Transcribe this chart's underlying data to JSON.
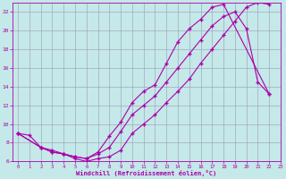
{
  "title": "",
  "xlabel": "Windchill (Refroidissement éolien,°C)",
  "ylabel": "",
  "xlim": [
    -0.5,
    23
  ],
  "ylim": [
    6,
    23
  ],
  "xticks": [
    0,
    1,
    2,
    3,
    4,
    5,
    6,
    7,
    8,
    9,
    10,
    11,
    12,
    13,
    14,
    15,
    16,
    17,
    18,
    19,
    20,
    21,
    22,
    23
  ],
  "yticks": [
    6,
    8,
    10,
    12,
    14,
    16,
    18,
    20,
    22
  ],
  "bg_color": "#c5e8e8",
  "line_color": "#aa00aa",
  "grid_color": "#9999bb",
  "curve1_x": [
    0,
    1,
    2,
    3,
    4,
    5,
    6,
    7,
    8,
    9,
    10,
    11,
    12,
    13,
    14,
    15,
    16,
    17,
    18,
    22
  ],
  "curve1_y": [
    9.0,
    8.8,
    7.5,
    7.2,
    6.8,
    6.5,
    6.3,
    7.0,
    8.7,
    10.2,
    12.3,
    13.5,
    14.2,
    16.5,
    18.8,
    20.2,
    21.2,
    22.5,
    22.8,
    13.2
  ],
  "curve2_x": [
    0,
    2,
    3,
    4,
    5,
    6,
    7,
    8,
    9,
    10,
    11,
    12,
    13,
    14,
    15,
    16,
    17,
    18,
    19,
    20,
    21,
    22
  ],
  "curve2_y": [
    9.0,
    7.5,
    7.0,
    6.8,
    6.5,
    6.3,
    6.8,
    7.5,
    9.2,
    11.0,
    12.0,
    13.0,
    14.5,
    16.0,
    17.5,
    19.0,
    20.5,
    21.5,
    22.0,
    20.2,
    14.5,
    13.2
  ],
  "curve3_x": [
    0,
    2,
    3,
    4,
    5,
    6,
    7,
    8,
    9,
    10,
    11,
    12,
    13,
    14,
    15,
    16,
    17,
    18,
    19,
    20,
    21,
    22
  ],
  "curve3_y": [
    9.0,
    7.5,
    7.0,
    6.8,
    6.3,
    6.0,
    6.3,
    6.5,
    7.2,
    9.0,
    10.0,
    11.0,
    12.3,
    13.5,
    14.8,
    16.5,
    18.0,
    19.5,
    21.0,
    22.5,
    23.0,
    22.8
  ]
}
